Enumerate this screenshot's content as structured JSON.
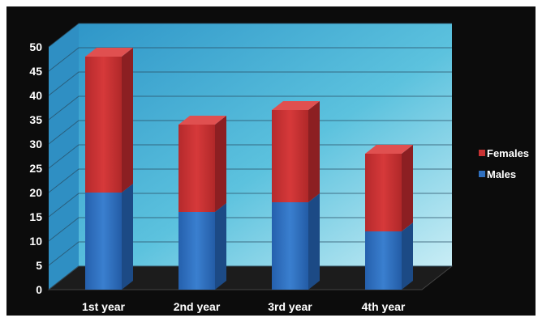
{
  "chart_data": {
    "type": "bar",
    "stacked": true,
    "three_d": true,
    "categories": [
      "1st year",
      "2nd year",
      "3rd year",
      "4th year"
    ],
    "series": [
      {
        "name": "Males",
        "values": [
          20,
          16,
          18,
          12
        ],
        "color": "#2f6fbe"
      },
      {
        "name": "Females",
        "values": [
          28,
          18,
          19,
          16
        ],
        "color": "#c83233"
      }
    ],
    "yticks": [
      "0",
      "5",
      "10",
      "15",
      "20",
      "25",
      "30",
      "35",
      "40",
      "45",
      "50"
    ],
    "ylim": [
      0,
      50
    ],
    "grid": true,
    "legend": "right",
    "colors": {
      "background": "#0c0c0c",
      "wall_top": "#3aa8d4",
      "wall_bottom": "#9bdcec",
      "floor": "#1a1a1a",
      "text": "#ffffff"
    }
  },
  "legend": {
    "entries": [
      {
        "label": "Females",
        "color": "#c83233"
      },
      {
        "label": "Males",
        "color": "#2f6fbe"
      }
    ]
  }
}
